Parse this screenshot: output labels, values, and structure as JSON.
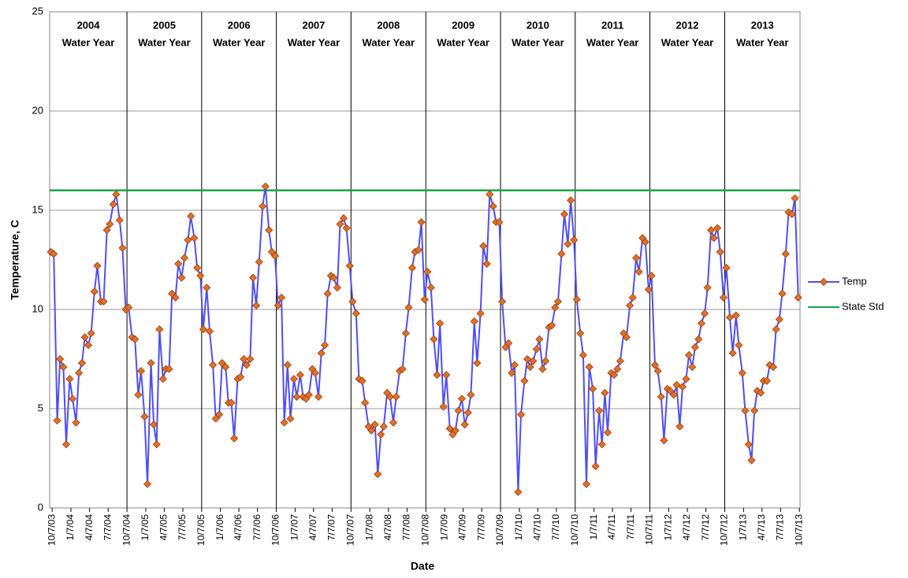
{
  "chart_data": {
    "type": "line",
    "ylabel": "Temperature, C",
    "xlabel": "Date",
    "xlim": [
      "2003-09-25",
      "2013-10-10"
    ],
    "ylim": [
      0,
      25
    ],
    "yticks": [
      0,
      5,
      10,
      15,
      20,
      25
    ],
    "grid": true,
    "legend": "right",
    "xticks": [
      {
        "value": "2003-10-07",
        "label": "10/7/03"
      },
      {
        "value": "2004-01-07",
        "label": "1/7/04"
      },
      {
        "value": "2004-04-07",
        "label": "4/7/04"
      },
      {
        "value": "2004-07-07",
        "label": "7/7/04"
      },
      {
        "value": "2004-10-07",
        "label": "10/7/04"
      },
      {
        "value": "2005-01-07",
        "label": "1/7/05"
      },
      {
        "value": "2005-04-07",
        "label": "4/7/05"
      },
      {
        "value": "2005-07-07",
        "label": "7/7/05"
      },
      {
        "value": "2005-10-07",
        "label": "10/7/05"
      },
      {
        "value": "2006-01-07",
        "label": "1/7/06"
      },
      {
        "value": "2006-04-07",
        "label": "4/7/06"
      },
      {
        "value": "2006-07-07",
        "label": "7/7/06"
      },
      {
        "value": "2006-10-07",
        "label": "10/7/06"
      },
      {
        "value": "2007-01-07",
        "label": "1/7/07"
      },
      {
        "value": "2007-04-07",
        "label": "4/7/07"
      },
      {
        "value": "2007-07-07",
        "label": "7/7/07"
      },
      {
        "value": "2007-10-07",
        "label": "10/7/07"
      },
      {
        "value": "2008-01-07",
        "label": "1/7/08"
      },
      {
        "value": "2008-04-07",
        "label": "4/7/08"
      },
      {
        "value": "2008-07-07",
        "label": "7/7/08"
      },
      {
        "value": "2008-10-07",
        "label": "10/7/08"
      },
      {
        "value": "2009-01-07",
        "label": "1/7/09"
      },
      {
        "value": "2009-04-07",
        "label": "4/7/09"
      },
      {
        "value": "2009-07-07",
        "label": "7/7/09"
      },
      {
        "value": "2009-10-07",
        "label": "10/7/09"
      },
      {
        "value": "2010-01-07",
        "label": "1/7/10"
      },
      {
        "value": "2010-04-07",
        "label": "4/7/10"
      },
      {
        "value": "2010-07-07",
        "label": "7/7/10"
      },
      {
        "value": "2010-10-07",
        "label": "10/7/10"
      },
      {
        "value": "2011-01-07",
        "label": "1/7/11"
      },
      {
        "value": "2011-04-07",
        "label": "4/7/11"
      },
      {
        "value": "2011-07-07",
        "label": "7/7/11"
      },
      {
        "value": "2011-10-07",
        "label": "10/7/11"
      },
      {
        "value": "2012-01-07",
        "label": "1/7/12"
      },
      {
        "value": "2012-04-07",
        "label": "4/7/12"
      },
      {
        "value": "2012-07-07",
        "label": "7/7/12"
      },
      {
        "value": "2012-10-07",
        "label": "10/7/12"
      },
      {
        "value": "2013-01-07",
        "label": "1/7/13"
      },
      {
        "value": "2013-04-07",
        "label": "4/7/13"
      },
      {
        "value": "2013-07-07",
        "label": "7/7/13"
      },
      {
        "value": "2013-10-07",
        "label": "10/7/13"
      }
    ],
    "year_lines": [
      "2004-10-07",
      "2005-10-07",
      "2006-10-07",
      "2007-10-07",
      "2008-10-07",
      "2009-10-07",
      "2010-10-07",
      "2011-10-07",
      "2012-10-07"
    ],
    "annotations": [
      {
        "year": "2004",
        "text": "Water Year"
      },
      {
        "year": "2005",
        "text": "Water Year"
      },
      {
        "year": "2006",
        "text": "Water Year"
      },
      {
        "year": "2007",
        "text": "Water Year"
      },
      {
        "year": "2008",
        "text": "Water Year"
      },
      {
        "year": "2009",
        "text": "Water Year"
      },
      {
        "year": "2010",
        "text": "Water Year"
      },
      {
        "year": "2011",
        "text": "Water Year"
      },
      {
        "year": "2012",
        "text": "Water Year"
      },
      {
        "year": "2013",
        "text": "Water Year"
      }
    ],
    "series": [
      {
        "name": "Temp",
        "color": "#4f4ff5",
        "marker_color": "#e0702a",
        "x": [
          "2003-10-01",
          "2003-10-15",
          "2003-11-01",
          "2003-11-15",
          "2003-12-01",
          "2003-12-15",
          "2004-01-01",
          "2004-01-15",
          "2004-02-01",
          "2004-02-15",
          "2004-03-01",
          "2004-03-15",
          "2004-04-01",
          "2004-04-15",
          "2004-05-01",
          "2004-05-15",
          "2004-06-01",
          "2004-06-15",
          "2004-07-01",
          "2004-07-15",
          "2004-08-01",
          "2004-08-15",
          "2004-09-01",
          "2004-09-15",
          "2004-10-01",
          "2004-10-15",
          "2004-11-01",
          "2004-11-15",
          "2004-12-01",
          "2004-12-15",
          "2005-01-01",
          "2005-01-15",
          "2005-02-01",
          "2005-02-15",
          "2005-03-01",
          "2005-03-15",
          "2005-04-01",
          "2005-04-15",
          "2005-05-01",
          "2005-05-15",
          "2005-06-01",
          "2005-06-15",
          "2005-07-01",
          "2005-07-15",
          "2005-08-01",
          "2005-08-15",
          "2005-09-01",
          "2005-09-15",
          "2005-10-01",
          "2005-10-15",
          "2005-11-01",
          "2005-11-15",
          "2005-12-01",
          "2005-12-15",
          "2006-01-01",
          "2006-01-15",
          "2006-02-01",
          "2006-02-15",
          "2006-03-01",
          "2006-03-15",
          "2006-04-01",
          "2006-04-15",
          "2006-05-01",
          "2006-05-15",
          "2006-06-01",
          "2006-06-15",
          "2006-07-01",
          "2006-07-15",
          "2006-08-01",
          "2006-08-15",
          "2006-09-01",
          "2006-09-15",
          "2006-10-01",
          "2006-10-15",
          "2006-11-01",
          "2006-11-15",
          "2006-12-01",
          "2006-12-15",
          "2007-01-01",
          "2007-01-15",
          "2007-02-01",
          "2007-02-15",
          "2007-03-01",
          "2007-03-15",
          "2007-04-01",
          "2007-04-15",
          "2007-05-01",
          "2007-05-15",
          "2007-06-01",
          "2007-06-15",
          "2007-07-01",
          "2007-07-15",
          "2007-08-01",
          "2007-08-15",
          "2007-09-01",
          "2007-09-15",
          "2007-10-01",
          "2007-10-15",
          "2007-11-01",
          "2007-11-15",
          "2007-12-01",
          "2007-12-15",
          "2008-01-01",
          "2008-01-15",
          "2008-02-01",
          "2008-02-15",
          "2008-03-01",
          "2008-03-15",
          "2008-04-01",
          "2008-04-15",
          "2008-05-01",
          "2008-05-15",
          "2008-06-01",
          "2008-06-15",
          "2008-07-01",
          "2008-07-15",
          "2008-08-01",
          "2008-08-15",
          "2008-09-01",
          "2008-09-15",
          "2008-10-01",
          "2008-10-15",
          "2008-11-01",
          "2008-11-15",
          "2008-12-01",
          "2008-12-15",
          "2009-01-01",
          "2009-01-15",
          "2009-02-01",
          "2009-02-15",
          "2009-03-01",
          "2009-03-15",
          "2009-04-01",
          "2009-04-15",
          "2009-05-01",
          "2009-05-15",
          "2009-06-01",
          "2009-06-15",
          "2009-07-01",
          "2009-07-15",
          "2009-08-01",
          "2009-08-15",
          "2009-09-01",
          "2009-09-15",
          "2009-10-01",
          "2009-10-15",
          "2009-11-01",
          "2009-11-15",
          "2009-12-01",
          "2009-12-15",
          "2010-01-01",
          "2010-01-15",
          "2010-02-01",
          "2010-02-15",
          "2010-03-01",
          "2010-03-15",
          "2010-04-01",
          "2010-04-15",
          "2010-05-01",
          "2010-05-15",
          "2010-06-01",
          "2010-06-15",
          "2010-07-01",
          "2010-07-15",
          "2010-08-01",
          "2010-08-15",
          "2010-09-01",
          "2010-09-15",
          "2010-10-01",
          "2010-10-15",
          "2010-11-01",
          "2010-11-15",
          "2010-12-01",
          "2010-12-15",
          "2011-01-01",
          "2011-01-15",
          "2011-02-01",
          "2011-02-15",
          "2011-03-01",
          "2011-03-15",
          "2011-04-01",
          "2011-04-15",
          "2011-05-01",
          "2011-05-15",
          "2011-06-01",
          "2011-06-15",
          "2011-07-01",
          "2011-07-15",
          "2011-08-01",
          "2011-08-15",
          "2011-09-01",
          "2011-09-15",
          "2011-10-01",
          "2011-10-15",
          "2011-11-01",
          "2011-11-15",
          "2011-12-01",
          "2011-12-15",
          "2012-01-01",
          "2012-01-15",
          "2012-02-01",
          "2012-02-15",
          "2012-03-01",
          "2012-03-15",
          "2012-04-01",
          "2012-04-15",
          "2012-05-01",
          "2012-05-15",
          "2012-06-01",
          "2012-06-15",
          "2012-07-01",
          "2012-07-15",
          "2012-08-01",
          "2012-08-15",
          "2012-09-01",
          "2012-09-15",
          "2012-10-01",
          "2012-10-15",
          "2012-11-01",
          "2012-11-15",
          "2012-12-01",
          "2012-12-15",
          "2013-01-01",
          "2013-01-15",
          "2013-02-01",
          "2013-02-15",
          "2013-03-01",
          "2013-03-15",
          "2013-04-01",
          "2013-04-15",
          "2013-05-01",
          "2013-05-15",
          "2013-06-01",
          "2013-06-15",
          "2013-07-01",
          "2013-07-15",
          "2013-08-01",
          "2013-08-15",
          "2013-09-01",
          "2013-09-15",
          "2013-10-01"
        ],
        "values": [
          12.9,
          12.8,
          4.4,
          7.5,
          7.1,
          3.2,
          6.5,
          5.5,
          4.3,
          6.8,
          7.3,
          8.6,
          8.2,
          8.8,
          10.9,
          12.2,
          10.4,
          10.4,
          14.0,
          14.3,
          15.3,
          15.8,
          14.5,
          13.1,
          10.0,
          10.1,
          8.6,
          8.5,
          5.7,
          6.9,
          4.6,
          1.2,
          7.3,
          4.2,
          3.2,
          9.0,
          6.5,
          7.0,
          7.0,
          10.8,
          10.6,
          12.3,
          11.6,
          12.6,
          13.5,
          14.7,
          13.6,
          12.1,
          11.7,
          9.0,
          11.1,
          8.9,
          7.2,
          4.5,
          4.7,
          7.3,
          7.1,
          5.3,
          5.3,
          3.5,
          6.5,
          6.6,
          7.5,
          7.2,
          7.5,
          11.6,
          10.2,
          12.4,
          15.2,
          16.2,
          14.0,
          12.9,
          12.7,
          10.2,
          10.6,
          4.3,
          7.2,
          4.5,
          6.5,
          5.6,
          6.7,
          5.6,
          5.5,
          5.7,
          7.0,
          6.8,
          5.6,
          7.8,
          8.2,
          10.8,
          11.7,
          11.6,
          11.1,
          14.3,
          14.6,
          14.1,
          12.2,
          10.4,
          9.8,
          6.5,
          6.4,
          5.3,
          4.1,
          3.9,
          4.2,
          1.7,
          3.7,
          4.1,
          5.8,
          5.6,
          4.3,
          5.6,
          6.9,
          7.0,
          8.8,
          10.1,
          12.1,
          12.9,
          13.0,
          14.4,
          10.5,
          11.9,
          11.1,
          8.5,
          6.7,
          9.3,
          5.1,
          6.7,
          4.0,
          3.7,
          3.9,
          4.9,
          5.5,
          4.2,
          4.8,
          5.7,
          9.4,
          7.3,
          9.8,
          13.2,
          12.3,
          15.8,
          15.2,
          14.4,
          14.4,
          10.4,
          8.1,
          8.3,
          6.8,
          7.2,
          0.8,
          4.7,
          6.4,
          7.5,
          7.1,
          7.4,
          8.0,
          8.5,
          7.0,
          7.4,
          9.1,
          9.2,
          10.1,
          10.4,
          12.8,
          14.8,
          13.3,
          15.5,
          13.5,
          10.5,
          8.8,
          7.7,
          1.2,
          7.1,
          6.0,
          2.1,
          4.9,
          3.2,
          5.8,
          3.8,
          6.8,
          6.7,
          7.0,
          7.4,
          8.8,
          8.6,
          10.2,
          10.6,
          12.6,
          11.9,
          13.6,
          13.4,
          11.0,
          11.7,
          7.2,
          6.9,
          5.6,
          3.4,
          6.0,
          5.9,
          5.7,
          6.2,
          4.1,
          6.1,
          6.5,
          7.7,
          7.1,
          8.1,
          8.5,
          9.3,
          9.8,
          11.1,
          14.0,
          13.6,
          14.1,
          12.9,
          10.6,
          12.1,
          9.6,
          7.8,
          9.7,
          8.2,
          6.8,
          4.9,
          3.2,
          2.4,
          4.9,
          5.9,
          5.8,
          6.4,
          6.4,
          7.2,
          7.1,
          9.0,
          9.5,
          10.8,
          12.8,
          14.9,
          14.8,
          15.6,
          10.6
        ]
      },
      {
        "name": "State Std",
        "color": "#1aa64a",
        "x": [
          "2003-09-25",
          "2013-10-10"
        ],
        "values": [
          16,
          16
        ]
      }
    ]
  }
}
